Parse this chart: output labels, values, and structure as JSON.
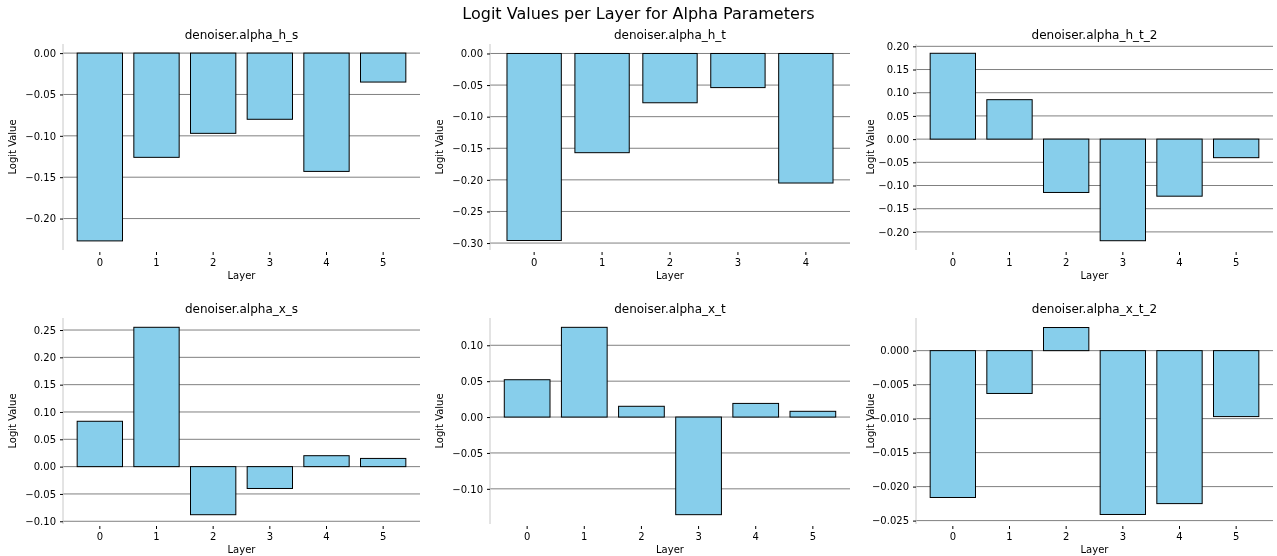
{
  "chart_data": [
    {
      "type": "bar",
      "title": "denoiser.alpha_h_s",
      "xlabel": "Layer",
      "ylabel": "Logit Value",
      "annotations": [
        "Logit Values per Layer for Alpha Parameters"
      ],
      "categories": [
        "0",
        "1",
        "2",
        "3",
        "4",
        "5"
      ],
      "values": [
        -0.227,
        -0.126,
        -0.097,
        -0.08,
        -0.143,
        -0.035
      ],
      "color": "#87ceeb",
      "ylim": [
        -0.238,
        0.011
      ],
      "yticks": [
        {
          "value": -0.2,
          "label": "−0.20"
        },
        {
          "value": -0.15,
          "label": "−0.15"
        },
        {
          "value": -0.1,
          "label": "−0.10"
        },
        {
          "value": -0.05,
          "label": "−0.05"
        },
        {
          "value": 0,
          "label": "0.00"
        }
      ],
      "grid": "y"
    },
    {
      "type": "bar",
      "title": "denoiser.alpha_h_t",
      "xlabel": "Layer",
      "ylabel": "Logit Value",
      "categories": [
        "0",
        "1",
        "2",
        "3",
        "4"
      ],
      "values": [
        -0.296,
        -0.157,
        -0.078,
        -0.054,
        -0.205
      ],
      "color": "#87ceeb",
      "ylim": [
        -0.311,
        0.015
      ],
      "yticks": [
        {
          "value": -0.3,
          "label": "−0.30"
        },
        {
          "value": -0.25,
          "label": "−0.25"
        },
        {
          "value": -0.2,
          "label": "−0.20"
        },
        {
          "value": -0.15,
          "label": "−0.15"
        },
        {
          "value": -0.1,
          "label": "−0.10"
        },
        {
          "value": -0.05,
          "label": "−0.05"
        },
        {
          "value": 0,
          "label": "0.00"
        }
      ],
      "grid": "y"
    },
    {
      "type": "bar",
      "title": "denoiser.alpha_h_t_2",
      "xlabel": "Layer",
      "ylabel": "Logit Value",
      "categories": [
        "0",
        "1",
        "2",
        "3",
        "4",
        "5"
      ],
      "values": [
        0.185,
        0.085,
        -0.115,
        -0.219,
        -0.123,
        -0.04
      ],
      "color": "#87ceeb",
      "ylim": [
        -0.239,
        0.205
      ],
      "yticks": [
        {
          "value": -0.2,
          "label": "−0.20"
        },
        {
          "value": -0.15,
          "label": "−0.15"
        },
        {
          "value": -0.1,
          "label": "−0.10"
        },
        {
          "value": -0.05,
          "label": "−0.05"
        },
        {
          "value": 0,
          "label": "0.00"
        },
        {
          "value": 0.05,
          "label": "0.05"
        },
        {
          "value": 0.1,
          "label": "0.10"
        },
        {
          "value": 0.15,
          "label": "0.15"
        },
        {
          "value": 0.2,
          "label": "0.20"
        }
      ],
      "grid": "y"
    },
    {
      "type": "bar",
      "title": "denoiser.alpha_x_s",
      "xlabel": "Layer",
      "ylabel": "Logit Value",
      "categories": [
        "0",
        "1",
        "2",
        "3",
        "4",
        "5"
      ],
      "values": [
        0.083,
        0.255,
        -0.088,
        -0.04,
        0.02,
        0.015
      ],
      "color": "#87ceeb",
      "ylim": [
        -0.105,
        0.272
      ],
      "yticks": [
        {
          "value": -0.1,
          "label": "−0.10"
        },
        {
          "value": -0.05,
          "label": "−0.05"
        },
        {
          "value": 0,
          "label": "0.00"
        },
        {
          "value": 0.05,
          "label": "0.05"
        },
        {
          "value": 0.1,
          "label": "0.10"
        },
        {
          "value": 0.15,
          "label": "0.15"
        },
        {
          "value": 0.2,
          "label": "0.20"
        },
        {
          "value": 0.25,
          "label": "0.25"
        }
      ],
      "grid": "y"
    },
    {
      "type": "bar",
      "title": "denoiser.alpha_x_t",
      "xlabel": "Layer",
      "ylabel": "Logit Value",
      "categories": [
        "0",
        "1",
        "2",
        "3",
        "4",
        "5"
      ],
      "values": [
        0.052,
        0.125,
        0.015,
        -0.136,
        0.019,
        0.008
      ],
      "color": "#87ceeb",
      "ylim": [
        -0.149,
        0.138
      ],
      "yticks": [
        {
          "value": -0.1,
          "label": "−0.10"
        },
        {
          "value": -0.05,
          "label": "−0.05"
        },
        {
          "value": 0,
          "label": "0.00"
        },
        {
          "value": 0.05,
          "label": "0.05"
        },
        {
          "value": 0.1,
          "label": "0.10"
        }
      ],
      "grid": "y"
    },
    {
      "type": "bar",
      "title": "denoiser.alpha_x_t_2",
      "xlabel": "Layer",
      "ylabel": "Logit Value",
      "categories": [
        "0",
        "1",
        "2",
        "3",
        "4",
        "5"
      ],
      "values": [
        -0.0216,
        -0.0063,
        0.0034,
        -0.0241,
        -0.0225,
        -0.0097
      ],
      "color": "#87ceeb",
      "ylim": [
        -0.0255,
        0.0048
      ],
      "yticks": [
        {
          "value": -0.025,
          "label": "−0.025"
        },
        {
          "value": -0.02,
          "label": "−0.020"
        },
        {
          "value": -0.015,
          "label": "−0.015"
        },
        {
          "value": -0.01,
          "label": "−0.010"
        },
        {
          "value": -0.005,
          "label": "−0.005"
        },
        {
          "value": 0,
          "label": "0.000"
        }
      ],
      "grid": "y"
    }
  ]
}
